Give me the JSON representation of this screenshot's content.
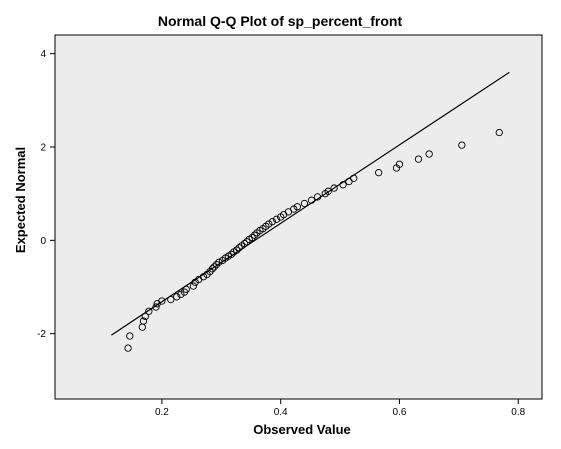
{
  "chart_data": {
    "type": "scatter",
    "title": "Normal Q-Q Plot of sp_percent_front",
    "xlabel": "Observed Value",
    "ylabel": "Expected Normal",
    "xlim": [
      0.02,
      0.84
    ],
    "ylim": [
      -3.4,
      4.4
    ],
    "xticks": [
      0.2,
      0.4,
      0.6,
      0.8
    ],
    "xtick_labels": [
      "0.2",
      "0.4",
      "0.6",
      "0.8"
    ],
    "yticks": [
      -2,
      0,
      2,
      4
    ],
    "ytick_labels": [
      "-2",
      "0",
      "2",
      "4"
    ],
    "grid": false,
    "plot_background": "#ececec",
    "marker_color": "#000000",
    "line_color": "#000000",
    "reference_line": {
      "x": [
        0.115,
        0.785
      ],
      "y": [
        -2.03,
        3.6
      ]
    },
    "series": [
      {
        "x": [
          0.143,
          0.146,
          0.167,
          0.169,
          0.172,
          0.178,
          0.19,
          0.192,
          0.2,
          0.215,
          0.225,
          0.232,
          0.238,
          0.241,
          0.253,
          0.256,
          0.262,
          0.27,
          0.276,
          0.281,
          0.285,
          0.288,
          0.292,
          0.296,
          0.302,
          0.307,
          0.312,
          0.317,
          0.321,
          0.326,
          0.33,
          0.334,
          0.339,
          0.343,
          0.347,
          0.352,
          0.356,
          0.36,
          0.365,
          0.37,
          0.375,
          0.38,
          0.386,
          0.393,
          0.4,
          0.405,
          0.413,
          0.422,
          0.428,
          0.44,
          0.452,
          0.462,
          0.475,
          0.48,
          0.49,
          0.505,
          0.515,
          0.523,
          0.565,
          0.595,
          0.6,
          0.632,
          0.65,
          0.705,
          0.768
        ],
        "y": [
          -2.31,
          -2.05,
          -1.86,
          -1.73,
          -1.63,
          -1.52,
          -1.43,
          -1.36,
          -1.3,
          -1.27,
          -1.21,
          -1.16,
          -1.11,
          -1.05,
          -0.98,
          -0.9,
          -0.84,
          -0.78,
          -0.73,
          -0.67,
          -0.61,
          -0.57,
          -0.52,
          -0.47,
          -0.43,
          -0.38,
          -0.34,
          -0.3,
          -0.25,
          -0.21,
          -0.16,
          -0.12,
          -0.07,
          -0.03,
          0.02,
          0.06,
          0.11,
          0.16,
          0.21,
          0.25,
          0.3,
          0.35,
          0.4,
          0.45,
          0.5,
          0.55,
          0.61,
          0.67,
          0.72,
          0.79,
          0.86,
          0.93,
          1.0,
          1.05,
          1.12,
          1.19,
          1.26,
          1.33,
          1.45,
          1.55,
          1.63,
          1.74,
          1.85,
          2.04,
          2.31
        ]
      }
    ]
  }
}
